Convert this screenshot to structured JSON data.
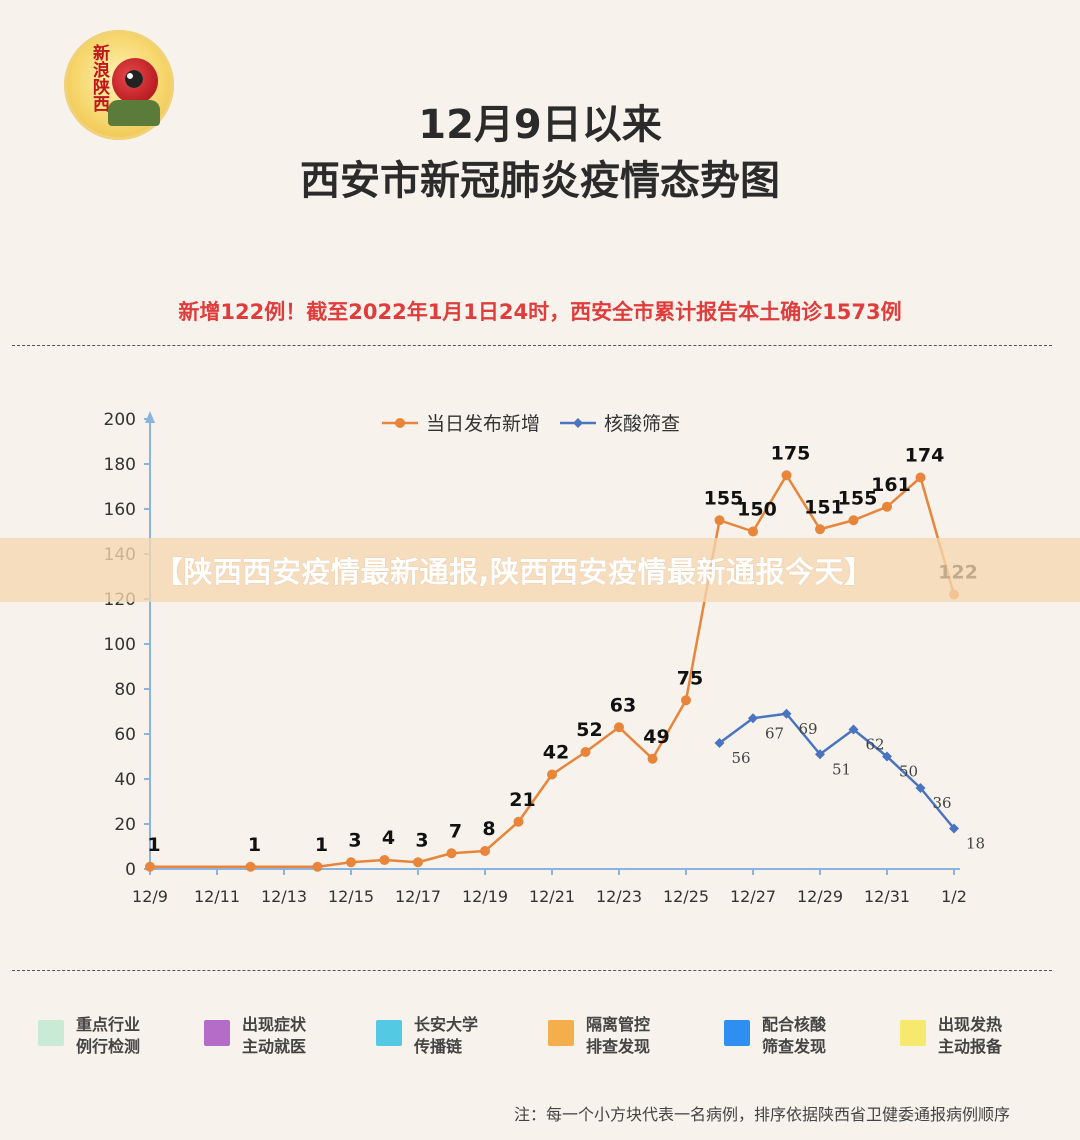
{
  "logo": {
    "text": "新浪陕西"
  },
  "title": {
    "line1": "12月9日以来",
    "line2": "西安市新冠肺炎疫情态势图"
  },
  "headline": "新增122例！截至2022年1月1日24时，西安全市累计报告本土确诊1573例",
  "banner": "【陕西西安疫情最新通报,陕西西安疫情最新通报今天】",
  "chart_data": {
    "type": "line",
    "x_ticks": [
      "12/9",
      "12/11",
      "12/13",
      "12/15",
      "12/17",
      "12/19",
      "12/21",
      "12/23",
      "12/25",
      "12/27",
      "12/29",
      "12/31",
      "1/2"
    ],
    "ylim": [
      0,
      200
    ],
    "y_ticks": [
      0,
      20,
      40,
      60,
      80,
      100,
      120,
      140,
      160,
      180,
      200
    ],
    "legend_position": "top",
    "series": [
      {
        "name": "当日发布新增",
        "color": "#e8853a",
        "points": [
          {
            "x": "12/9",
            "y": 1
          },
          {
            "x": "12/12",
            "y": 1
          },
          {
            "x": "12/14",
            "y": 1
          },
          {
            "x": "12/15",
            "y": 3
          },
          {
            "x": "12/16",
            "y": 4
          },
          {
            "x": "12/17",
            "y": 3
          },
          {
            "x": "12/18",
            "y": 7
          },
          {
            "x": "12/19",
            "y": 8
          },
          {
            "x": "12/20",
            "y": 21
          },
          {
            "x": "12/21",
            "y": 42
          },
          {
            "x": "12/22",
            "y": 52
          },
          {
            "x": "12/23",
            "y": 63
          },
          {
            "x": "12/24",
            "y": 49
          },
          {
            "x": "12/25",
            "y": 75
          },
          {
            "x": "12/26",
            "y": 155
          },
          {
            "x": "12/27",
            "y": 150
          },
          {
            "x": "12/28",
            "y": 175
          },
          {
            "x": "12/29",
            "y": 151
          },
          {
            "x": "12/30",
            "y": 155
          },
          {
            "x": "12/31",
            "y": 161
          },
          {
            "x": "1/1",
            "y": 174
          },
          {
            "x": "1/2",
            "y": 122
          }
        ]
      },
      {
        "name": "核酸筛查",
        "color": "#4a74c0",
        "points": [
          {
            "x": "12/26",
            "y": 56
          },
          {
            "x": "12/27",
            "y": 67
          },
          {
            "x": "12/28",
            "y": 69
          },
          {
            "x": "12/29",
            "y": 51
          },
          {
            "x": "12/30",
            "y": 62
          },
          {
            "x": "12/31",
            "y": 50
          },
          {
            "x": "1/1",
            "y": 36
          },
          {
            "x": "1/2",
            "y": 18
          }
        ]
      }
    ]
  },
  "categories": [
    {
      "line1": "重点行业",
      "line2": "例行检测",
      "color": "#c9ead4"
    },
    {
      "line1": "出现症状",
      "line2": "主动就医",
      "color": "#b56cc9"
    },
    {
      "line1": "长安大学",
      "line2": "传播链",
      "color": "#54c9e4"
    },
    {
      "line1": "隔离管控",
      "line2": "排查发现",
      "color": "#f5ae4e"
    },
    {
      "line1": "配合核酸",
      "line2": "筛查发现",
      "color": "#2e8ff0"
    },
    {
      "line1": "出现发热",
      "line2": "主动报备",
      "color": "#f5ea6e"
    }
  ],
  "note": "注：每一个小方块代表一名病例，排序依据陕西省卫健委通报病例顺序"
}
